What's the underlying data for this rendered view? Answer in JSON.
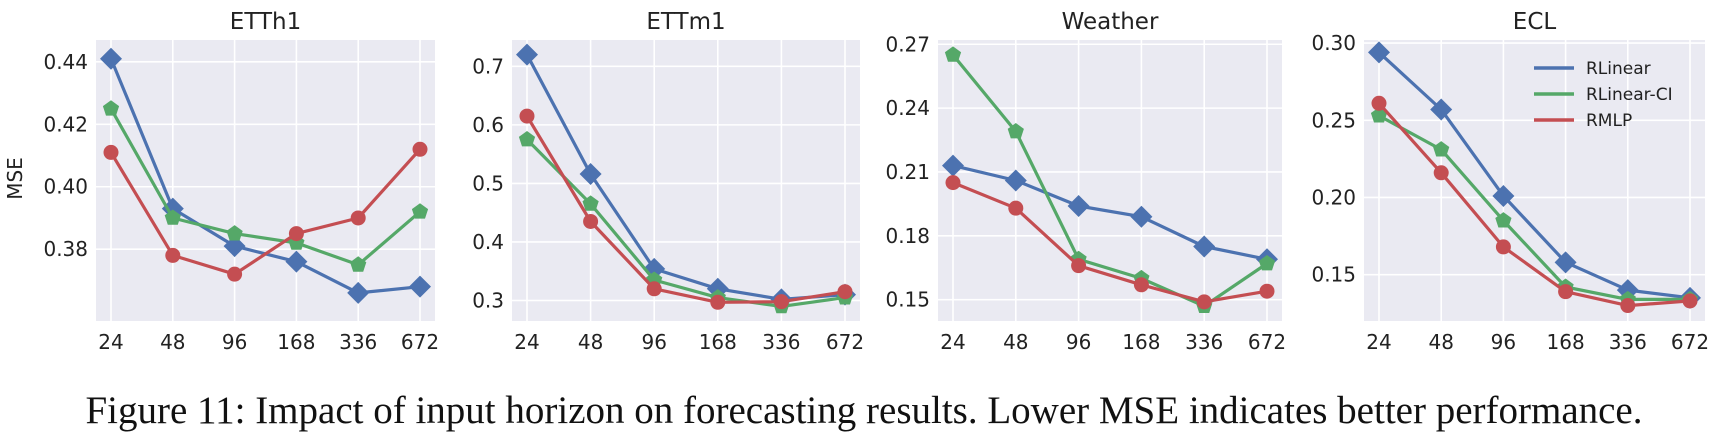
{
  "caption": "Figure 11: Impact of input horizon on forecasting results. Lower MSE indicates better performance.",
  "colors": {
    "RLinear": "#4c72b0",
    "RLinear-CI": "#55a868",
    "RMLP": "#c44e52",
    "panel_bg": "#eaeaf2",
    "grid": "#ffffff"
  },
  "markers": {
    "RLinear": "diamond",
    "RLinear-CI": "pentagon",
    "RMLP": "circle"
  },
  "legend": {
    "placement": "upper right of ECL panel",
    "entries": [
      "RLinear",
      "RLinear-CI",
      "RMLP"
    ]
  },
  "chart_data": [
    {
      "type": "line",
      "title": "ETTh1",
      "ylabel": "MSE",
      "x": [
        "24",
        "48",
        "96",
        "168",
        "336",
        "672"
      ],
      "ylim": [
        0.357,
        0.447
      ],
      "yticks": [
        0.38,
        0.4,
        0.42,
        0.44
      ],
      "yticklabels": [
        "0.38",
        "0.40",
        "0.42",
        "0.44"
      ],
      "grid": true,
      "series": [
        {
          "name": "RLinear",
          "values": [
            0.441,
            0.393,
            0.381,
            0.376,
            0.366,
            0.368
          ]
        },
        {
          "name": "RLinear-CI",
          "values": [
            0.425,
            0.39,
            0.385,
            0.382,
            0.375,
            0.392
          ]
        },
        {
          "name": "RMLP",
          "values": [
            0.411,
            0.378,
            0.372,
            0.385,
            0.39,
            0.412
          ]
        }
      ]
    },
    {
      "type": "line",
      "title": "ETTm1",
      "ylabel": "",
      "x": [
        "24",
        "48",
        "96",
        "168",
        "336",
        "672"
      ],
      "ylim": [
        0.265,
        0.745
      ],
      "yticks": [
        0.3,
        0.4,
        0.5,
        0.6,
        0.7
      ],
      "yticklabels": [
        "0.3",
        "0.4",
        "0.5",
        "0.6",
        "0.7"
      ],
      "grid": true,
      "series": [
        {
          "name": "RLinear",
          "values": [
            0.72,
            0.516,
            0.354,
            0.32,
            0.302,
            0.31
          ]
        },
        {
          "name": "RLinear-CI",
          "values": [
            0.575,
            0.465,
            0.335,
            0.305,
            0.29,
            0.305
          ]
        },
        {
          "name": "RMLP",
          "values": [
            0.615,
            0.435,
            0.32,
            0.297,
            0.298,
            0.315
          ]
        }
      ]
    },
    {
      "type": "line",
      "title": "Weather",
      "ylabel": "",
      "x": [
        "24",
        "48",
        "96",
        "168",
        "336",
        "672"
      ],
      "ylim": [
        0.14,
        0.272
      ],
      "yticks": [
        0.15,
        0.18,
        0.21,
        0.24,
        0.27
      ],
      "yticklabels": [
        "0.15",
        "0.18",
        "0.21",
        "0.24",
        "0.27"
      ],
      "grid": true,
      "series": [
        {
          "name": "RLinear",
          "values": [
            0.213,
            0.206,
            0.194,
            0.189,
            0.175,
            0.169
          ]
        },
        {
          "name": "RLinear-CI",
          "values": [
            0.265,
            0.229,
            0.169,
            0.16,
            0.147,
            0.167
          ]
        },
        {
          "name": "RMLP",
          "values": [
            0.205,
            0.193,
            0.166,
            0.157,
            0.149,
            0.154
          ]
        }
      ]
    },
    {
      "type": "line",
      "title": "ECL",
      "ylabel": "",
      "x": [
        "24",
        "48",
        "96",
        "168",
        "336",
        "672"
      ],
      "ylim": [
        0.12,
        0.302
      ],
      "yticks": [
        0.15,
        0.2,
        0.25,
        0.3
      ],
      "yticklabels": [
        "0.15",
        "0.20",
        "0.25",
        "0.30"
      ],
      "grid": true,
      "series": [
        {
          "name": "RLinear",
          "values": [
            0.294,
            0.257,
            0.201,
            0.158,
            0.14,
            0.135
          ]
        },
        {
          "name": "RLinear-CI",
          "values": [
            0.253,
            0.231,
            0.185,
            0.142,
            0.134,
            0.134
          ]
        },
        {
          "name": "RMLP",
          "values": [
            0.261,
            0.216,
            0.168,
            0.139,
            0.13,
            0.133
          ]
        }
      ]
    }
  ]
}
